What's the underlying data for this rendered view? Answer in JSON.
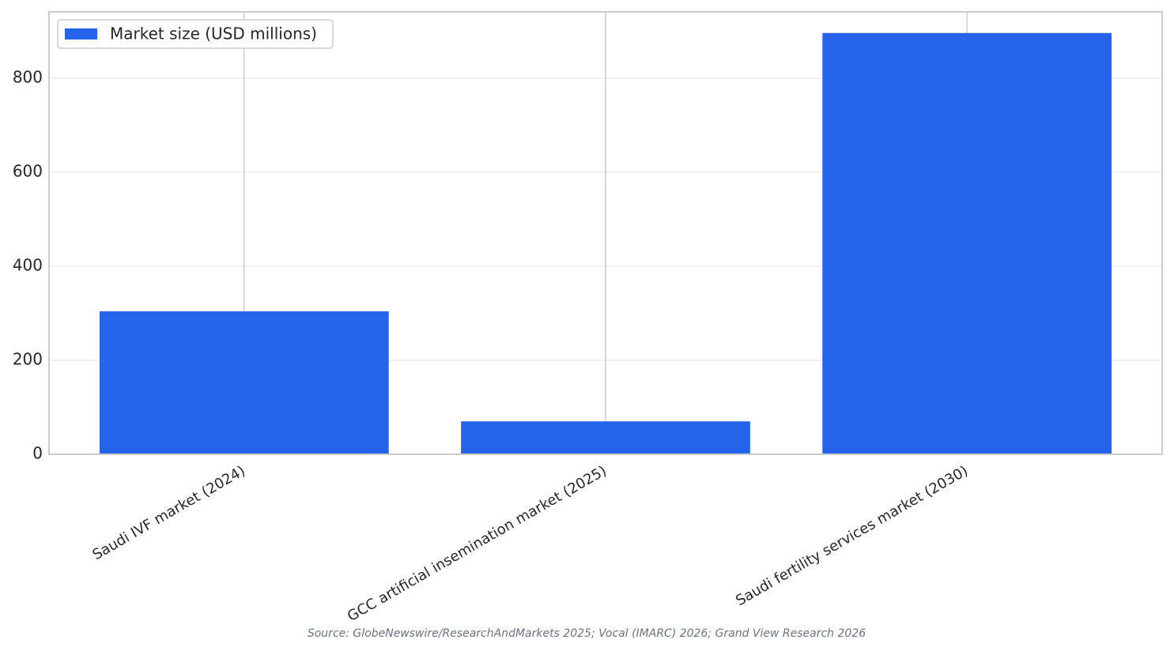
{
  "chart_data": {
    "type": "bar",
    "categories": [
      "Saudi IVF market (2024)",
      "GCC artificial insemination market (2025)",
      "Saudi fertility services market (2030)"
    ],
    "series": [
      {
        "name": "Market size (USD millions)",
        "color": "#2563eb",
        "values": [
          304,
          70,
          896
        ]
      }
    ],
    "ylim": [
      0,
      941
    ],
    "yticks": [
      0,
      200,
      400,
      600,
      800
    ],
    "grid": true,
    "legend": "upper left",
    "source": "Source: GlobeNewswire/ResearchAndMarkets 2025; Vocal (IMARC) 2026; Grand View Research 2026"
  }
}
